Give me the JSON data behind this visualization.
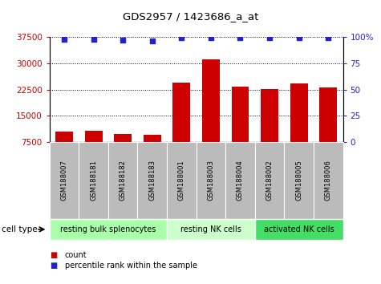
{
  "title": "GDS2957 / 1423686_a_at",
  "samples": [
    "GSM188007",
    "GSM188181",
    "GSM188182",
    "GSM188183",
    "GSM188001",
    "GSM188003",
    "GSM188004",
    "GSM188002",
    "GSM188005",
    "GSM188006"
  ],
  "counts": [
    10500,
    10700,
    9800,
    9500,
    24500,
    31200,
    23200,
    22700,
    24200,
    23000
  ],
  "percentile_ranks": [
    98,
    98,
    97,
    96,
    99,
    99,
    99,
    99,
    99,
    99
  ],
  "ylim_left": [
    7500,
    37500
  ],
  "ylim_right": [
    0,
    100
  ],
  "yticks_left": [
    7500,
    15000,
    22500,
    30000,
    37500
  ],
  "yticks_right": [
    0,
    25,
    50,
    75,
    100
  ],
  "bar_color": "#cc0000",
  "dot_color": "#2222cc",
  "group_labels": [
    "resting bulk splenocytes",
    "resting NK cells",
    "activated NK cells"
  ],
  "group_starts": [
    0,
    4,
    7
  ],
  "group_ends": [
    4,
    7,
    10
  ],
  "group_colors": [
    "#aaffaa",
    "#ccffcc",
    "#44dd66"
  ],
  "cell_type_label": "cell type",
  "legend_count_label": "count",
  "legend_pct_label": "percentile rank within the sample",
  "bg_color": "#ffffff",
  "tick_bg_color": "#bbbbbb",
  "left_tick_color": "#cc0000",
  "right_tick_color": "#2222cc",
  "n_samples": 10
}
